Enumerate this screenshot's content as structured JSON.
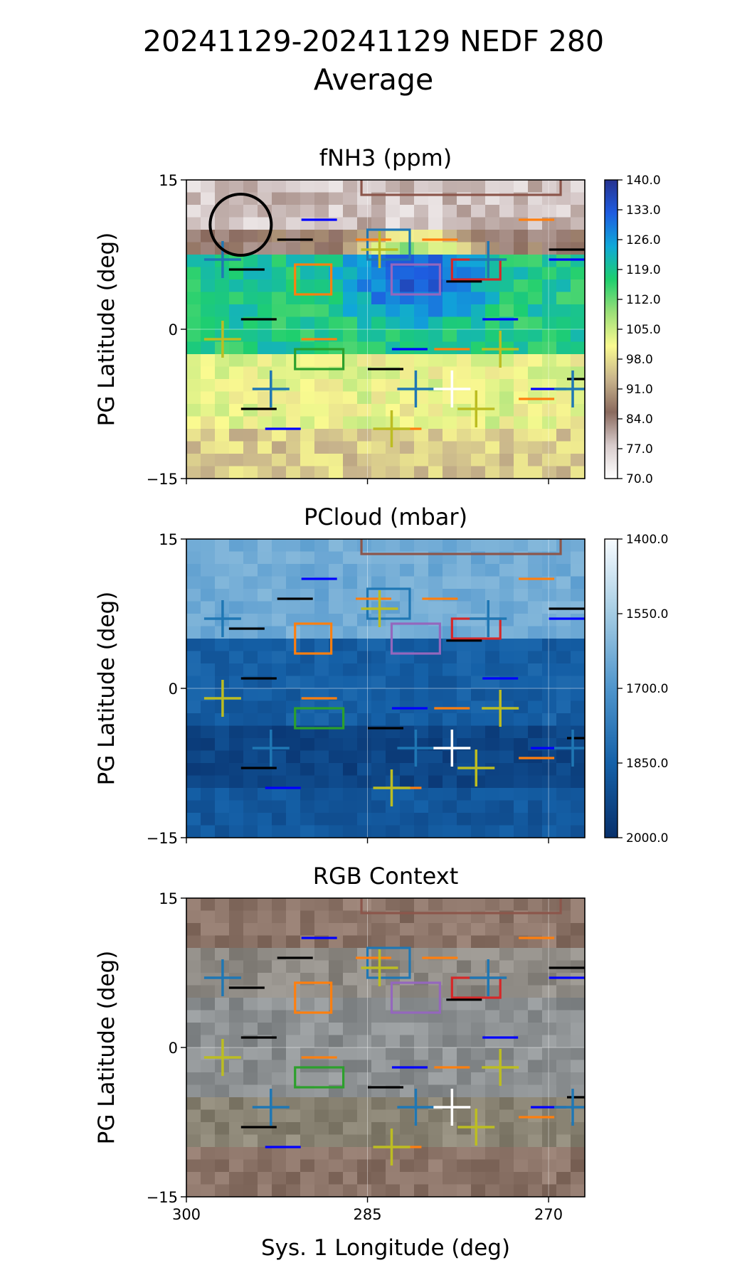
{
  "figure": {
    "title_line1": "20241129-20241129 NEDF 280",
    "title_line2": "Average"
  },
  "chart_data": [
    {
      "type": "heatmap",
      "title": "fNH3 (ppm)",
      "ylabel": "PG Latitude (deg)",
      "xlabel": "",
      "xlim": [
        300,
        267
      ],
      "ylim": [
        -15,
        15
      ],
      "xticks": [
        300,
        285,
        270
      ],
      "show_xtick_labels": false,
      "yticks": [
        -15,
        0,
        15
      ],
      "ytick_labels": [
        "−15",
        "0",
        "15"
      ],
      "grid": true,
      "colormap": "terrain_r",
      "colorbar": {
        "range": [
          70.0,
          140.0
        ],
        "ticks": [
          "70.0",
          "77.0",
          "84.0",
          "91.0",
          "98.0",
          "105.0",
          "112.0",
          "119.0",
          "126.0",
          "133.0",
          "140.0"
        ],
        "colors": [
          "#ffffff",
          "#d8cccc",
          "#8a6a5e",
          "#c8b48c",
          "#fafa90",
          "#9cdf78",
          "#1ecf6e",
          "#10a8d8",
          "#1e5ce0",
          "#26328f"
        ]
      },
      "field_description_bands": [
        {
          "lat_range": [
            10,
            15
          ],
          "value": 78
        },
        {
          "lat_range": [
            7.5,
            10
          ],
          "value": 86
        },
        {
          "lat_range": [
            -2,
            7.5
          ],
          "value": 118
        },
        {
          "lat_range": [
            -10,
            -2
          ],
          "value": 102
        },
        {
          "lat_range": [
            -15,
            -10
          ],
          "value": 96
        }
      ],
      "blob": {
        "lon": 281,
        "lat": 5,
        "value": 136
      },
      "show_ammonia_circle": true
    },
    {
      "type": "heatmap",
      "title": "PCloud (mbar)",
      "ylabel": "PG Latitude (deg)",
      "xlabel": "",
      "xlim": [
        300,
        267
      ],
      "ylim": [
        -15,
        15
      ],
      "xticks": [
        300,
        285,
        270
      ],
      "show_xtick_labels": false,
      "yticks": [
        -15,
        0,
        15
      ],
      "ytick_labels": [
        "−15",
        "0",
        "15"
      ],
      "grid": true,
      "colormap": "Blues",
      "colorbar": {
        "range": [
          2000.0,
          1400.0
        ],
        "ticks": [
          "2000.0",
          "1850.0",
          "1700.0",
          "1550.0",
          "1400.0"
        ],
        "colors": [
          "#08306b",
          "#1561a8",
          "#4f95cc",
          "#a4cce3",
          "#f7fbff"
        ]
      },
      "field_description_bands": [
        {
          "lat_range": [
            5,
            15
          ],
          "value": 1640
        },
        {
          "lat_range": [
            -4,
            5
          ],
          "value": 1860
        },
        {
          "lat_range": [
            -10,
            -4
          ],
          "value": 1940
        },
        {
          "lat_range": [
            -15,
            -10
          ],
          "value": 1880
        }
      ]
    },
    {
      "type": "heatmap",
      "title": "RGB Context",
      "ylabel": "PG Latitude (deg)",
      "xlabel": "Sys. 1 Longitude (deg)",
      "xlim": [
        300,
        267
      ],
      "ylim": [
        -15,
        15
      ],
      "xticks": [
        300,
        285,
        270
      ],
      "xtick_labels": [
        "300",
        "285",
        "270"
      ],
      "show_xtick_labels": true,
      "yticks": [
        -15,
        0,
        15
      ],
      "ytick_labels": [
        "−15",
        "0",
        "15"
      ],
      "grid": true,
      "colormap": "rgb-image",
      "field_description_bands": [
        {
          "lat_range": [
            10,
            15
          ],
          "color": "#8c7468"
        },
        {
          "lat_range": [
            5,
            10
          ],
          "color": "#8e8a84"
        },
        {
          "lat_range": [
            -5,
            5
          ],
          "color": "#8c9092"
        },
        {
          "lat_range": [
            -10,
            -5
          ],
          "color": "#8a8474"
        },
        {
          "lat_range": [
            -15,
            -10
          ],
          "color": "#8a7266"
        }
      ]
    }
  ],
  "overlays": {
    "crosses": [
      {
        "lon": 297,
        "lat": 7,
        "color": "#1f77b4"
      },
      {
        "lon": 293,
        "lat": -6,
        "color": "#1f77b4"
      },
      {
        "lon": 281,
        "lat": -6,
        "color": "#1f77b4"
      },
      {
        "lon": 275,
        "lat": 7,
        "color": "#1f77b4"
      },
      {
        "lon": 268,
        "lat": -6,
        "color": "#1f77b4"
      },
      {
        "lon": 297,
        "lat": -1,
        "color": "#bcbd22"
      },
      {
        "lon": 284,
        "lat": 8,
        "color": "#bcbd22"
      },
      {
        "lon": 283,
        "lat": -10,
        "color": "#bcbd22"
      },
      {
        "lon": 276,
        "lat": -8,
        "color": "#bcbd22"
      },
      {
        "lon": 274,
        "lat": -2,
        "color": "#bcbd22"
      },
      {
        "lon": 278,
        "lat": -6,
        "color": "#ffffff"
      }
    ],
    "boxes": [
      {
        "lon": [
          291,
          288
        ],
        "lat": [
          3.5,
          6.5
        ],
        "color": "#ff7f0e"
      },
      {
        "lon": [
          285,
          281.5
        ],
        "lat": [
          7,
          10
        ],
        "color": "#1f77b4"
      },
      {
        "lon": [
          283,
          279
        ],
        "lat": [
          3.5,
          6.5
        ],
        "color": "#9467bd"
      },
      {
        "lon": [
          278,
          274
        ],
        "lat": [
          5,
          7
        ],
        "color": "#d62728"
      },
      {
        "lon": [
          291,
          287
        ],
        "lat": [
          -4,
          -2
        ],
        "color": "#2ca02c"
      },
      {
        "lon": [
          285.5,
          269
        ],
        "lat": [
          13.5,
          16
        ],
        "color": "#8c564b"
      }
    ],
    "dashes": [
      {
        "lon": 289,
        "lat": 11,
        "color": "#0000ff"
      },
      {
        "lon": 291,
        "lat": 9,
        "color": "#000000"
      },
      {
        "lon": 295,
        "lat": 6,
        "color": "#000000"
      },
      {
        "lon": 284.5,
        "lat": 9,
        "color": "#ff7f0e"
      },
      {
        "lon": 279,
        "lat": 9,
        "color": "#ff7f0e"
      },
      {
        "lon": 271,
        "lat": 11,
        "color": "#ff7f0e"
      },
      {
        "lon": 268.5,
        "lat": 8,
        "color": "#000000"
      },
      {
        "lon": 268.5,
        "lat": 7,
        "color": "#0000ff"
      },
      {
        "lon": 274,
        "lat": 1,
        "color": "#0000ff"
      },
      {
        "lon": 294,
        "lat": 1,
        "color": "#000000"
      },
      {
        "lon": 289,
        "lat": -1,
        "color": "#ff7f0e"
      },
      {
        "lon": 281.5,
        "lat": -2,
        "color": "#0000ff"
      },
      {
        "lon": 278,
        "lat": -2,
        "color": "#ff7f0e"
      },
      {
        "lon": 283.5,
        "lat": -4,
        "color": "#000000"
      },
      {
        "lon": 270,
        "lat": -6,
        "color": "#0000ff"
      },
      {
        "lon": 267,
        "lat": -5,
        "color": "#000000"
      },
      {
        "lon": 271,
        "lat": -7,
        "color": "#ff7f0e"
      },
      {
        "lon": 294,
        "lat": -8,
        "color": "#000000"
      },
      {
        "lon": 292,
        "lat": -10,
        "color": "#0000ff"
      },
      {
        "lon": 282,
        "lat": -10,
        "color": "#ff7f0e"
      },
      {
        "lon": 277,
        "lat": 4.8,
        "color": "#000000"
      }
    ]
  }
}
